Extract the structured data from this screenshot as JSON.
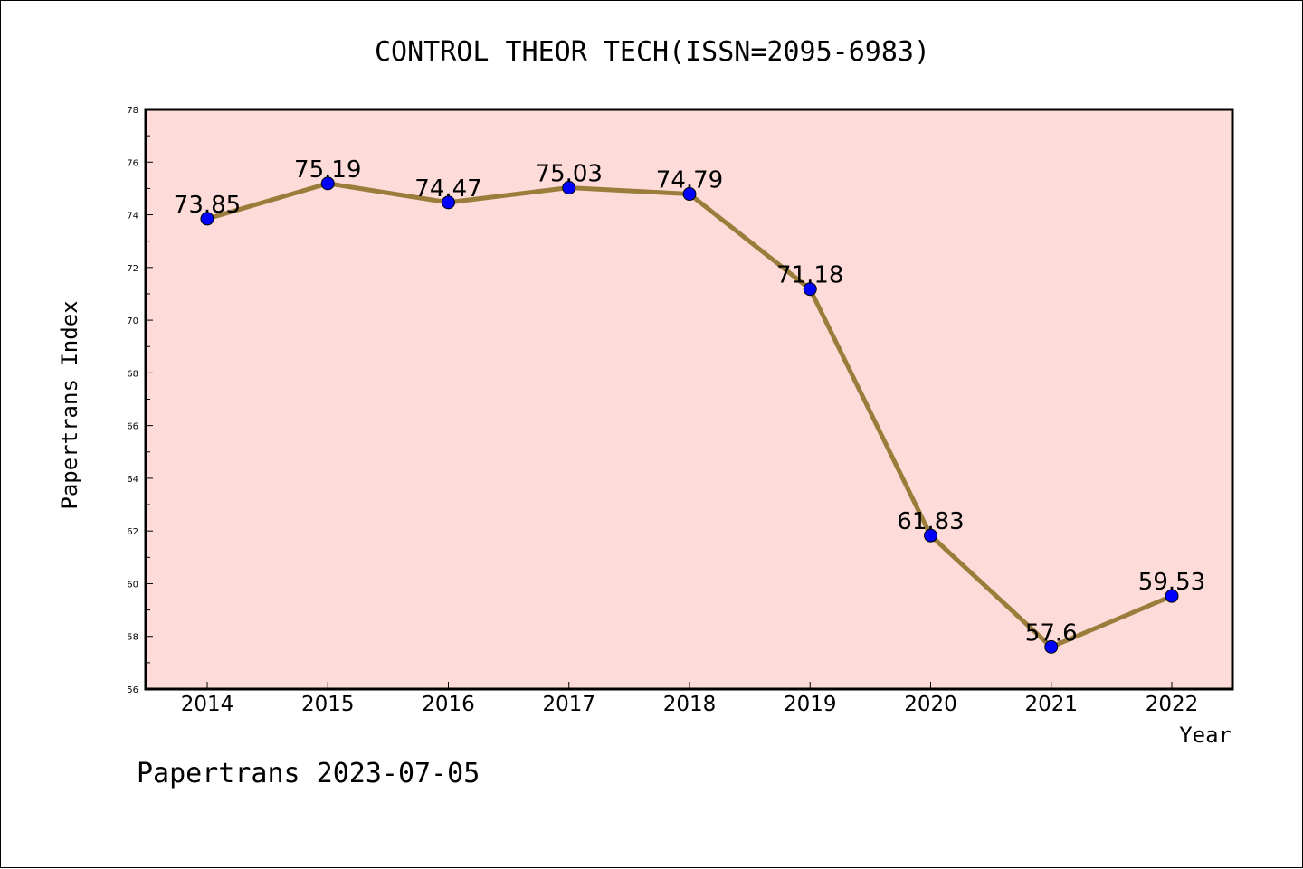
{
  "chart_data": {
    "type": "line",
    "title": "CONTROL THEOR TECH(ISSN=2095-6983)",
    "xlabel": "Year",
    "ylabel": "Papertrans Index",
    "categories": [
      "2014",
      "2015",
      "2016",
      "2017",
      "2018",
      "2019",
      "2020",
      "2021",
      "2022"
    ],
    "series": [
      {
        "values": [
          73.85,
          75.19,
          74.47,
          75.03,
          74.79,
          71.18,
          61.83,
          57.6,
          59.53
        ],
        "labels": [
          "73.85",
          "75.19",
          "74.47",
          "75.03",
          "74.79",
          "71.18",
          "61.83",
          "57.6",
          "59.53"
        ]
      }
    ],
    "ylim": [
      56,
      78
    ],
    "yticks": [
      "56",
      "58",
      "60",
      "62",
      "64",
      "66",
      "68",
      "70",
      "72",
      "74",
      "76",
      "78"
    ],
    "grid": false,
    "legend": "none"
  },
  "footer": {
    "text": "Papertrans 2023-07-05"
  },
  "colors": {
    "plot_background": "#fddbd8",
    "line": "#9a7d3a",
    "marker_fill": "#0000ff",
    "marker_stroke": "#000000",
    "axis": "#000000"
  }
}
